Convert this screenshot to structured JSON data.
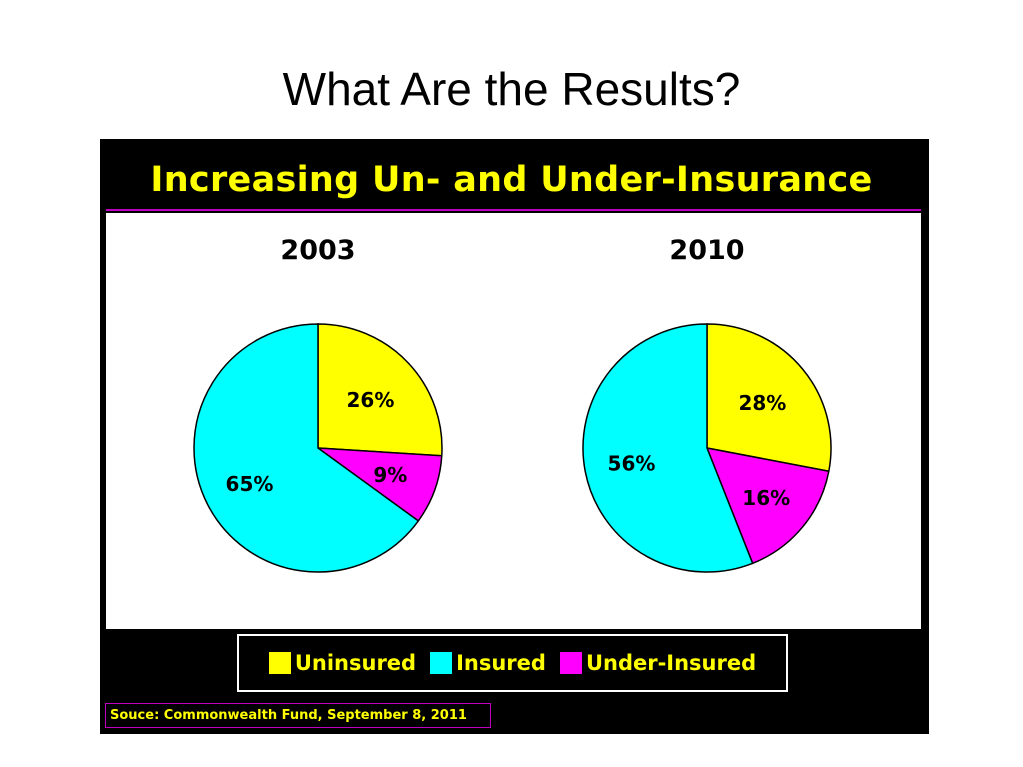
{
  "slide": {
    "title": "What Are the Results?"
  },
  "colors": {
    "uninsured": "#ffff00",
    "insured": "#00ffff",
    "under_insured": "#ff00ff",
    "panel_background": "#000000",
    "title_text": "#ffff00",
    "rule": "#c000c0"
  },
  "chart_data": {
    "type": "pie",
    "title": "Increasing Un- and Under-Insurance",
    "categories": [
      "Uninsured",
      "Insured",
      "Under-Insured"
    ],
    "charts": [
      {
        "year": "2003",
        "values": [
          26,
          65,
          9
        ],
        "labels": [
          "26%",
          "65%",
          "9%"
        ]
      },
      {
        "year": "2010",
        "values": [
          28,
          56,
          16
        ],
        "labels": [
          "28%",
          "56%",
          "16%"
        ]
      }
    ],
    "legend": [
      "Uninsured",
      "Insured",
      "Under-Insured"
    ],
    "legend_placement": "bottom"
  },
  "source": {
    "text": "Souce: Commonwealth Fund, September 8, 2011"
  }
}
